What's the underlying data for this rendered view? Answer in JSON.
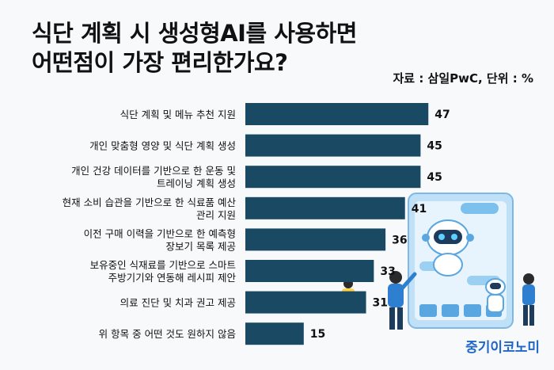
{
  "header": {
    "title_line1": "식단 계획 시 생성형AI를 사용하면",
    "title_line2": "어떤점이 가장 편리한가요?",
    "source": "자료 : 삼일PwC, 단위 : %"
  },
  "brand": {
    "logo_text": "중기이코노미"
  },
  "colors": {
    "bar": "#1a4a63",
    "text": "#111111",
    "logo": "#1e66c8"
  },
  "chart_data": {
    "type": "bar",
    "orientation": "horizontal",
    "unit": "%",
    "categories": [
      [
        "식단 계획 및 메뉴 추천 지원"
      ],
      [
        "개인 맞춤형 영양 및 식단 계획 생성"
      ],
      [
        "개인 건강 데이터를 기반으로 한 운동 및",
        "트레이닝 계획 생성"
      ],
      [
        "현재 소비 습관을 기반으로 한 식료품 예산",
        "관리 지원"
      ],
      [
        "이전 구매 이력을 기반으로 한 예측형",
        "장보기 목록 제공"
      ],
      [
        "보유중인 식재료를 기반으로 스마트",
        "주방기기와 연동해 레시피 제안"
      ],
      [
        "의료 진단 및 치과 권고 제공"
      ],
      [
        "위 항목 중 어떤 것도 원하지 않음"
      ]
    ],
    "values": [
      47,
      45,
      45,
      41,
      36,
      33,
      31,
      15
    ]
  }
}
